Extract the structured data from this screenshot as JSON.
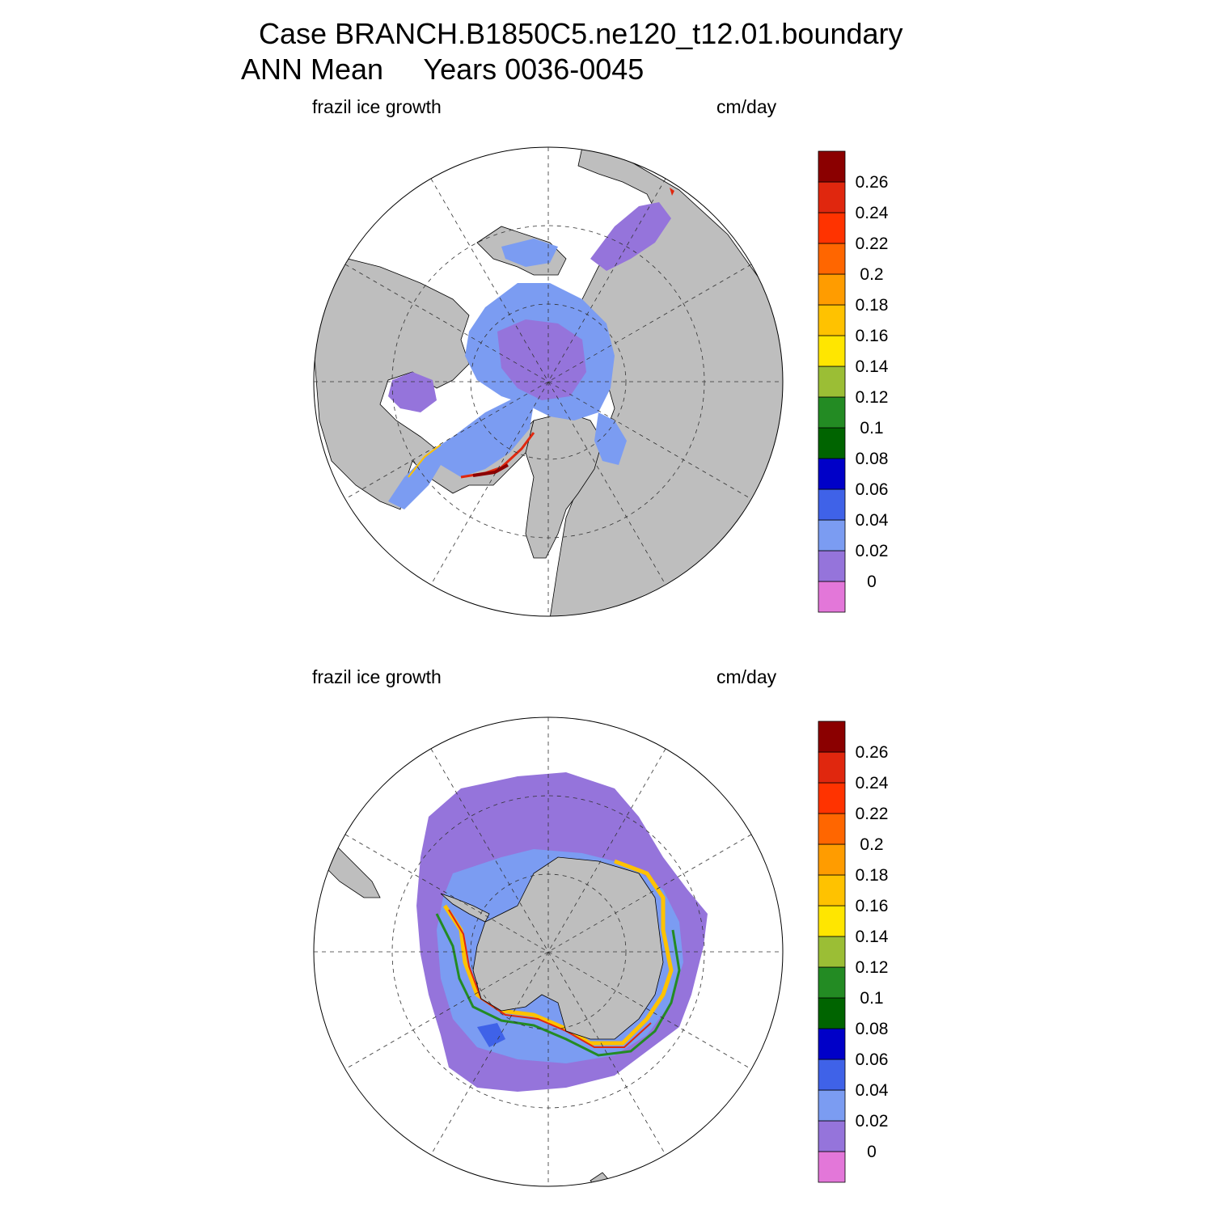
{
  "header": {
    "title_line1": "Case BRANCH.B1850C5.ne120_t12.01.boundary",
    "title_line2": "ANN Mean     Years 0036-0045"
  },
  "panels": [
    {
      "id": "north",
      "left_label": "frazil ice growth",
      "right_label": "cm/day"
    },
    {
      "id": "south",
      "left_label": "frazil ice growth",
      "right_label": "cm/day"
    }
  ],
  "colorbar": {
    "colors": [
      "#e377d9",
      "#9574db",
      "#7b9cf2",
      "#3f62e8",
      "#0000c8",
      "#006400",
      "#238b23",
      "#9bbe35",
      "#ffe600",
      "#ffc200",
      "#ff9c00",
      "#ff6600",
      "#ff3300",
      "#e0270e",
      "#8b0000"
    ],
    "labels": [
      "0",
      "0.02",
      "0.04",
      "0.06",
      "0.08",
      "0.1",
      "0.12",
      "0.14",
      "0.16",
      "0.18",
      "0.2",
      "0.22",
      "0.24",
      "0.26"
    ]
  },
  "map_colors": {
    "land": "#bebebe",
    "ocean_no_ice": "#ffffff",
    "ice_low": "#9574db",
    "ice_mid": "#7b9cf2"
  }
}
